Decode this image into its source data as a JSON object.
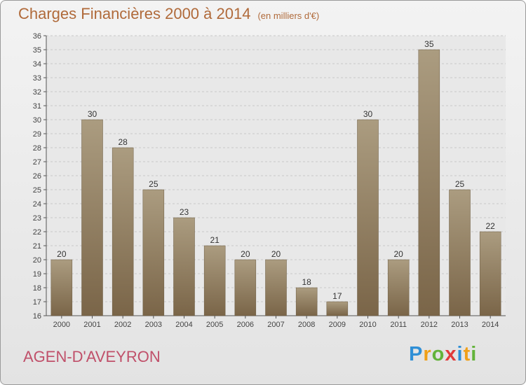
{
  "header": {
    "title": "Charges Financières 2000 à 2014",
    "unit": "(en milliers d'€)"
  },
  "footer": {
    "commune": "AGEN-D'AVEYRON",
    "logo_letters": [
      {
        "ch": "P",
        "color": "#2f8fd6"
      },
      {
        "ch": "r",
        "color": "#f0a018"
      },
      {
        "ch": "o",
        "color": "#63b33a"
      },
      {
        "ch": "x",
        "color": "#e23a3a"
      },
      {
        "ch": "i",
        "color": "#2f8fd6"
      },
      {
        "ch": "t",
        "color": "#f0a018"
      },
      {
        "ch": "i",
        "color": "#63b33a"
      }
    ]
  },
  "colors": {
    "bar_top": "#ab9c80",
    "bar_bottom": "#7a6548",
    "title": "#b06a3a",
    "commune": "#c0506a"
  },
  "chart_data": {
    "type": "bar",
    "title": "Charges Financières 2000 à 2014",
    "subtitle": "(en milliers d'€)",
    "categories": [
      "2000",
      "2001",
      "2002",
      "2003",
      "2004",
      "2005",
      "2006",
      "2007",
      "2008",
      "2009",
      "2010",
      "2011",
      "2012",
      "2013",
      "2014"
    ],
    "values": [
      20,
      30,
      28,
      25,
      23,
      21,
      20,
      20,
      18,
      17,
      30,
      20,
      35,
      25,
      22
    ],
    "ylim": [
      16,
      36
    ],
    "yticks": [
      16,
      17,
      18,
      19,
      20,
      21,
      22,
      23,
      24,
      25,
      26,
      27,
      28,
      29,
      30,
      31,
      32,
      33,
      34,
      35,
      36
    ],
    "grid": true,
    "data_labels": true
  }
}
